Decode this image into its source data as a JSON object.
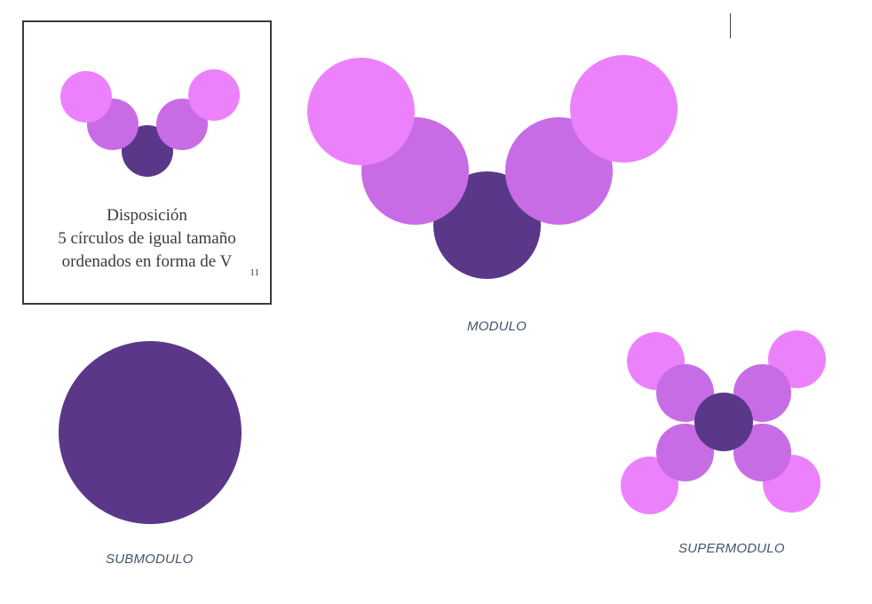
{
  "card": {
    "line1": "Disposición",
    "line2": "5 círculos de igual tamaño",
    "line3": "ordenados en forma de V",
    "page_number": "11"
  },
  "captions": {
    "modulo": "MODULO",
    "submodulo": "SUBMODULO",
    "supermodulo": "SUPERMODULO"
  },
  "colors": {
    "dark": "#5b378a",
    "mid": "#c86ce6",
    "light": "#ec82fb"
  }
}
